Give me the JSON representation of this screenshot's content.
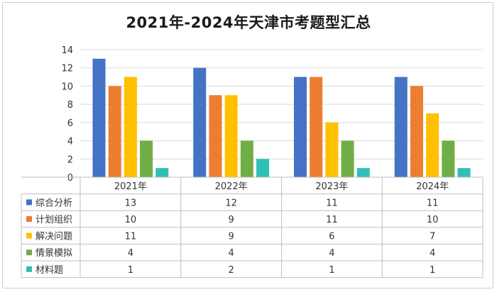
{
  "chart_data": {
    "type": "bar",
    "title": "2021年-2024年天津市考题型汇总",
    "categories": [
      "2021年",
      "2022年",
      "2023年",
      "2024年"
    ],
    "series": [
      {
        "name": "综合分析",
        "color": "#4472c4",
        "values": [
          13,
          12,
          11,
          11
        ]
      },
      {
        "name": "计划组织",
        "color": "#ed7d31",
        "values": [
          10,
          9,
          11,
          10
        ]
      },
      {
        "name": "解决问题",
        "color": "#ffc000",
        "values": [
          11,
          9,
          6,
          7
        ]
      },
      {
        "name": "情景模拟",
        "color": "#70ad47",
        "values": [
          4,
          4,
          4,
          4
        ]
      },
      {
        "name": "材料题",
        "color": "#2fbfb6",
        "values": [
          1,
          2,
          1,
          1
        ]
      }
    ],
    "ylim": [
      0,
      14
    ],
    "yticks": [
      0,
      2,
      4,
      6,
      8,
      10,
      12,
      14
    ],
    "grid": true,
    "legend": "data-table",
    "xlabel": "",
    "ylabel": ""
  }
}
